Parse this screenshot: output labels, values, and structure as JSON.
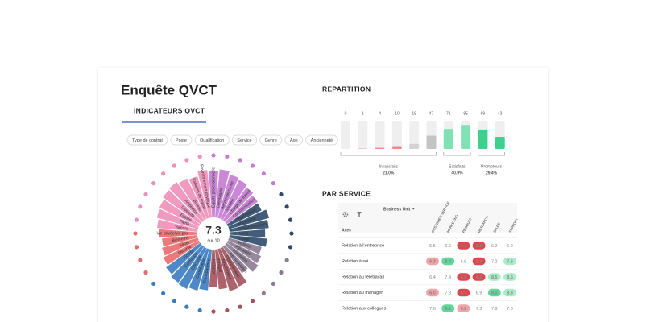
{
  "header": {
    "title": "Enquête QVCT"
  },
  "tab": {
    "label": "INDICATEURS QVCT"
  },
  "filters": [
    "Type de contrat",
    "Poste",
    "Qualification",
    "Service",
    "Genre",
    "Âge",
    "Ancienneté"
  ],
  "chart_data": [
    {
      "type": "radial_bar",
      "score": 7.3,
      "score_label": "sur 10",
      "rlim": [
        0,
        10
      ],
      "categories": [
        "Égalité professionnelle",
        "Convivialité",
        "Reconnaissance",
        "Soutien",
        "Charge de travail",
        "Communication",
        "Organisation",
        "Autonomie",
        "Développement",
        "Sens",
        "Clarté",
        "Matériel",
        "Flexibilité",
        "Formation",
        "Rémunération",
        "Discrimination",
        "Harcèlement",
        "Éthique",
        "Inclusion",
        "Transparence",
        "Coopération",
        "Efficacité",
        "Confiance",
        "Écoute",
        "Sécurité",
        "Santé",
        "Bien-être",
        "Vie privée/vie pro",
        "Valeurs",
        "Fierté",
        "Égalité",
        "Diversité",
        "Ambiance",
        "Bureau",
        "Espaces de travail",
        "Environnement physique"
      ],
      "values": [
        8.5,
        8.8,
        8.2,
        7.9,
        7.4,
        7.0,
        6.8,
        7.6,
        7.2,
        6.5,
        6.9,
        6.2,
        6.7,
        7.1,
        6.0,
        7.8,
        8.0,
        7.3,
        6.9,
        7.5,
        7.9,
        8.3,
        8.1,
        7.7,
        7.2,
        6.8,
        6.5,
        7.0,
        7.4,
        7.8,
        8.0,
        8.4,
        8.6,
        8.2,
        7.9,
        8.7
      ],
      "colors": [
        "#c57bd3",
        "#c57bd3",
        "#c57bd3",
        "#c57bd3",
        "#c57bd3",
        "#c57bd3",
        "#2d4b6c",
        "#2d4b6c",
        "#2d4b6c",
        "#2d4b6c",
        "#2d4b6c",
        "#8d7b94",
        "#8d7b94",
        "#8d7b94",
        "#8d7b94",
        "#a4525e",
        "#a4525e",
        "#a4525e",
        "#a4525e",
        "#3a7cc2",
        "#3a7cc2",
        "#3a7cc2",
        "#3a7cc2",
        "#3a7cc2",
        "#e96c6c",
        "#e96c6c",
        "#e96c6c",
        "#e96c6c",
        "#ee8fb9",
        "#ee8fb9",
        "#ee8fb9",
        "#ee8fb9",
        "#ee8fb9",
        "#ee8fb9",
        "#ee8fb9",
        "#ee8fb9"
      ]
    },
    {
      "type": "bar",
      "title": "REPARTITION",
      "values": [
        0,
        1,
        4,
        10,
        18,
        47,
        71,
        85,
        69,
        43
      ],
      "colors": [
        "#f08a8a",
        "#f08a8a",
        "#f08a8a",
        "#f08a8a",
        "#d4d4d4",
        "#c4c4c4",
        "#80e2b4",
        "#80e2b4",
        "#3fd08e",
        "#3fd08e"
      ],
      "ylim": [
        0,
        100
      ],
      "groups": [
        {
          "name": "Insatisfaits",
          "percent": "21.0%",
          "from": 0,
          "to": 5
        },
        {
          "name": "Satisfaits",
          "percent": "40.9%",
          "from": 6,
          "to": 7
        },
        {
          "name": "Promoteurs",
          "percent": "29.4%",
          "from": 8,
          "to": 9
        }
      ]
    }
  ],
  "table": {
    "title": "PAR SERVICE",
    "group_label": "Business Unit",
    "row_header": "Axes",
    "columns": [
      "CUSTOMER SERVICE",
      "MARKETING",
      "PRODUCT",
      "RESEARCH",
      "SALES",
      "SUPPORT"
    ],
    "rows": [
      {
        "label": "Relation à l'entreprise",
        "values": [
          "5.5",
          "6.6",
          "4.7",
          "3.8",
          "6.2",
          "6.2"
        ],
        "colors": [
          null,
          null,
          "#e0474c",
          "#e0474c",
          null,
          null
        ]
      },
      {
        "label": "Relation à soi",
        "values": [
          "6.3",
          "8.4",
          "6.6",
          "5.3",
          "7.2",
          "7.6"
        ],
        "colors": [
          "#f2a3a6",
          "#5fd89a",
          null,
          "#e0474c",
          null,
          "#a8ecc8"
        ]
      },
      {
        "label": "Relation au télétravail",
        "values": [
          "6.4",
          "7.4",
          "4.9",
          "4.6",
          "8.5",
          "8.5"
        ],
        "colors": [
          null,
          null,
          "#e0474c",
          "#e0474c",
          "#a8ecc8",
          "#a8ecc8"
        ]
      },
      {
        "label": "Relation au manager",
        "values": [
          "6.0",
          "7.3",
          "5.7",
          "6.9",
          "8.0",
          "8.3"
        ],
        "colors": [
          "#f2a3a6",
          null,
          "#e0474c",
          null,
          "#5fd89a",
          "#a8ecc8"
        ]
      },
      {
        "label": "Relation aux collègues",
        "values": [
          "7.6",
          "8.1",
          "6.2",
          "7.3",
          "7.9",
          "7.0"
        ],
        "colors": [
          null,
          "#5fd89a",
          "#f2a3a6",
          null,
          null,
          null
        ]
      }
    ]
  }
}
